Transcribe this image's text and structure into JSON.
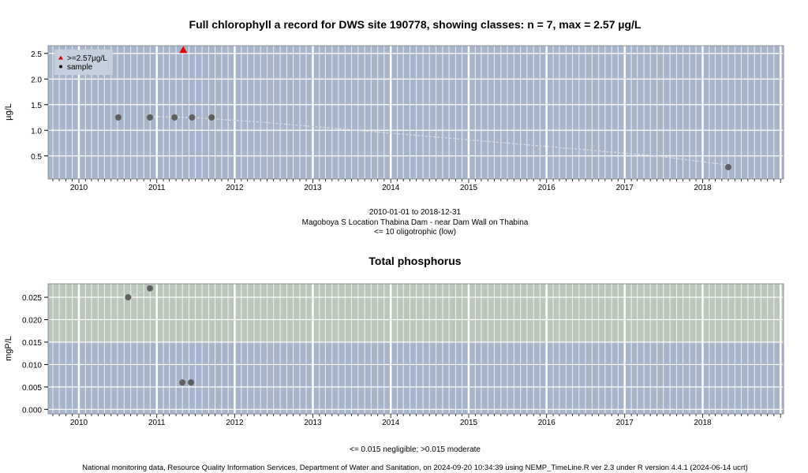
{
  "chart_data": [
    {
      "type": "scatter",
      "title": "Full chlorophyll a record for DWS site 190778, showing classes: n = 7, max = 2.57 µg/L",
      "ylabel": "µg/L",
      "x_tick_labels": [
        "2010",
        "2011",
        "2012",
        "2013",
        "2014",
        "2015",
        "2016",
        "2017",
        "2018"
      ],
      "y_ticks": [
        "0.5",
        "1.0",
        "1.5",
        "2.0",
        "2.5"
      ],
      "ylim": [
        0.05,
        2.65
      ],
      "xlim": [
        "2009-08-10",
        "2019-01-15"
      ],
      "grid": true,
      "legend": {
        "placement": "top-left",
        "entries": [
          {
            "label": ">=2.57µg/L",
            "marker": "triangle",
            "color": "#dd0000"
          },
          {
            "label": "sample",
            "marker": "dot",
            "color": "#000000"
          }
        ]
      },
      "class_bands": [
        {
          "from": 0,
          "to": 2.65,
          "color": "#a6b4cc"
        }
      ],
      "series": [
        {
          "points": [
            {
              "x": "2010-07-05",
              "y": 1.25
            },
            {
              "x": "2010-11-30",
              "y": 1.25
            },
            {
              "x": "2011-03-25",
              "y": 1.25
            },
            {
              "x": "2011-05-05",
              "y": 2.57
            },
            {
              "x": "2011-06-15",
              "y": 1.25
            },
            {
              "x": "2011-09-15",
              "y": 1.25
            },
            {
              "x": "2018-05-01",
              "y": 0.28
            }
          ]
        }
      ],
      "trend": [
        {
          "x": "2010-11-30",
          "y": 1.27
        },
        {
          "x": "2011-06-15",
          "y": 1.25
        },
        {
          "x": "2012-06-01",
          "y": 1.15
        },
        {
          "x": "2013-06-01",
          "y": 1.02
        },
        {
          "x": "2014-06-01",
          "y": 0.89
        },
        {
          "x": "2015-06-01",
          "y": 0.76
        },
        {
          "x": "2016-06-01",
          "y": 0.63
        },
        {
          "x": "2017-06-01",
          "y": 0.5
        },
        {
          "x": "2018-05-01",
          "y": 0.32
        }
      ],
      "captions": [
        "2010-01-01 to 2018-12-31",
        "Magoboya S Location Thabina Dam - near Dam Wall on Thabina",
        "<= 10 oligotrophic (low)"
      ],
      "colors": {
        "band": "#a6b4cc",
        "point": "#606060",
        "max": "#dd0000",
        "trend": "#d8dde6",
        "grid": "#ffffff"
      }
    },
    {
      "type": "scatter",
      "title": "Total phosphorus",
      "ylabel": "mgP/L",
      "x_tick_labels": [
        "2010",
        "2011",
        "2012",
        "2013",
        "2014",
        "2015",
        "2016",
        "2017",
        "2018"
      ],
      "y_ticks": [
        "0.000",
        "0.005",
        "0.010",
        "0.015",
        "0.020",
        "0.025"
      ],
      "ylim": [
        -0.001,
        0.028
      ],
      "xlim": [
        "2009-08-10",
        "2019-01-15"
      ],
      "grid": true,
      "class_bands": [
        {
          "from": -0.001,
          "to": 0.015,
          "color": "#a6b4cc"
        },
        {
          "from": 0.015,
          "to": 0.028,
          "color": "#bcc7bb"
        }
      ],
      "series": [
        {
          "points": [
            {
              "x": "2010-08-20",
              "y": 0.025
            },
            {
              "x": "2010-11-30",
              "y": 0.027
            },
            {
              "x": "2011-05-01",
              "y": 0.006
            },
            {
              "x": "2011-06-10",
              "y": 0.006
            }
          ]
        }
      ],
      "trend": [
        {
          "x": "2010-08-20",
          "y": 0.025
        },
        {
          "x": "2010-11-30",
          "y": 0.027
        }
      ],
      "captions": [
        "<= 0.015 negligible; >0.015 moderate"
      ],
      "colors": {
        "low": "#a6b4cc",
        "moderate": "#bcc7bb",
        "point": "#606060",
        "trend": "#d8dde6",
        "grid": "#ffffff"
      }
    }
  ],
  "footer": "National monitoring data, Resource Quality Information Services, Department of Water and Sanitation, on 2024-09-20 10:34:39 using NEMP_TimeLine.R ver 2.3 under R version 4.4.1 (2024-06-14 ucrt)"
}
